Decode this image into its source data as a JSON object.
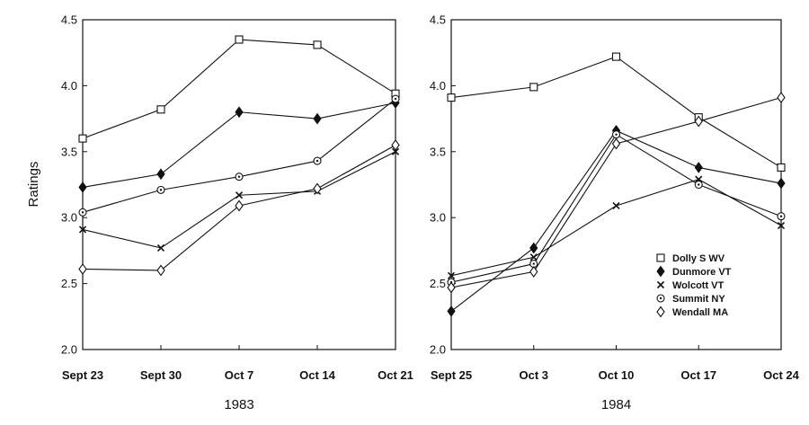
{
  "figure": {
    "ylabel": "Ratings"
  },
  "chart_data": [
    {
      "type": "line",
      "title": "",
      "xlabel": "1983",
      "ylabel": "Ratings",
      "categories": [
        "Sept 23",
        "Sept 30",
        "Oct 7",
        "Oct 14",
        "Oct 21"
      ],
      "ylim": [
        2.0,
        4.5
      ],
      "yticks": [
        "2.0",
        "2.5",
        "3.0",
        "3.5",
        "4.0",
        "4.5"
      ],
      "grid": false,
      "series": [
        {
          "name": "Dolly S WV",
          "marker": "square",
          "values": [
            3.6,
            3.82,
            4.35,
            4.31,
            3.94
          ]
        },
        {
          "name": "Dunmore VT",
          "marker": "diamond-filled",
          "values": [
            3.23,
            3.33,
            3.8,
            3.75,
            3.87
          ]
        },
        {
          "name": "Wolcott VT",
          "marker": "x",
          "values": [
            2.91,
            2.77,
            3.17,
            3.2,
            3.5
          ]
        },
        {
          "name": "Summit NY",
          "marker": "circle-dot",
          "values": [
            3.04,
            3.21,
            3.31,
            3.43,
            3.9
          ]
        },
        {
          "name": "Wendall MA",
          "marker": "diamond-open",
          "values": [
            2.61,
            2.6,
            3.09,
            3.22,
            3.55
          ]
        }
      ]
    },
    {
      "type": "line",
      "title": "",
      "xlabel": "1984",
      "ylabel": "",
      "categories": [
        "Sept 25",
        "Oct 3",
        "Oct 10",
        "Oct 17",
        "Oct 24"
      ],
      "ylim": [
        2.0,
        4.5
      ],
      "yticks": [
        "2.0",
        "2.5",
        "3.0",
        "3.5",
        "4.0",
        "4.5"
      ],
      "grid": false,
      "legend": {
        "position": "lower-right",
        "entries": [
          "Dolly S WV",
          "Dunmore VT",
          "Wolcott VT",
          "Summit NY",
          "Wendall MA"
        ]
      },
      "series": [
        {
          "name": "Dolly S WV",
          "marker": "square",
          "values": [
            3.91,
            3.99,
            4.22,
            3.76,
            3.38
          ]
        },
        {
          "name": "Dunmore VT",
          "marker": "diamond-filled",
          "values": [
            2.29,
            2.77,
            3.66,
            3.38,
            3.26
          ]
        },
        {
          "name": "Wolcott VT",
          "marker": "x",
          "values": [
            2.56,
            2.7,
            3.09,
            3.29,
            2.94
          ]
        },
        {
          "name": "Summit NY",
          "marker": "circle-dot",
          "values": [
            2.51,
            2.65,
            3.63,
            3.25,
            3.01
          ]
        },
        {
          "name": "Wendall MA",
          "marker": "diamond-open",
          "values": [
            2.47,
            2.59,
            3.56,
            3.73,
            3.91
          ]
        }
      ]
    }
  ]
}
